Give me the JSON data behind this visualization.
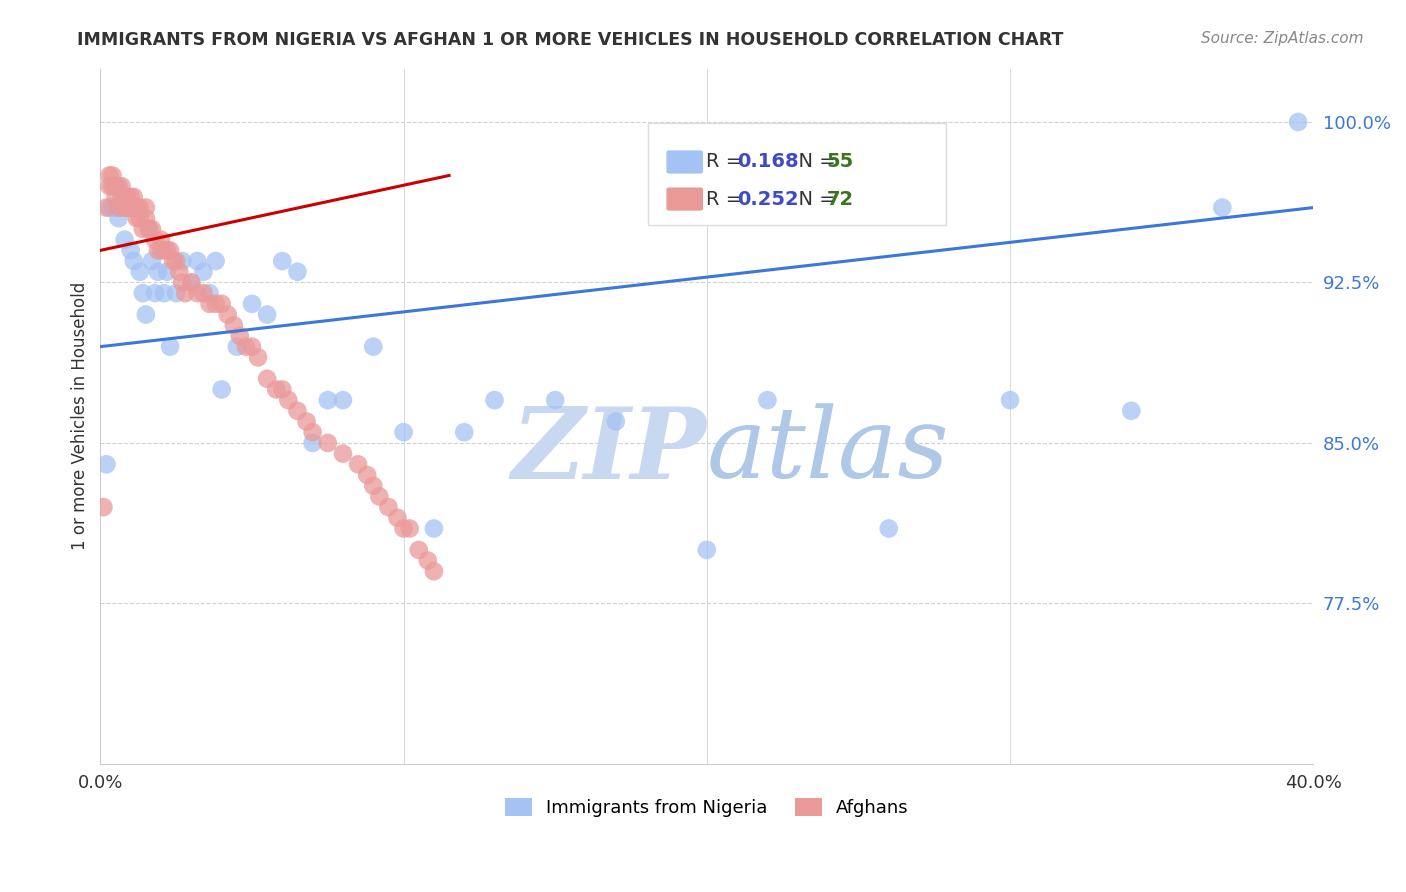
{
  "title": "IMMIGRANTS FROM NIGERIA VS AFGHAN 1 OR MORE VEHICLES IN HOUSEHOLD CORRELATION CHART",
  "source": "Source: ZipAtlas.com",
  "ylabel": "1 or more Vehicles in Household",
  "xmin": 0.0,
  "xmax": 0.4,
  "ymin": 0.7,
  "ymax": 1.025,
  "nigeria_R": 0.168,
  "nigeria_N": 55,
  "afghan_R": 0.252,
  "afghan_N": 72,
  "nigeria_color": "#a4c2f4",
  "afghan_color": "#ea9999",
  "nigeria_line_color": "#3c78d8",
  "afghan_line_color": "#cc0000",
  "grid_color": "#cccccc",
  "title_color": "#333333",
  "source_color": "#888888",
  "legend_r_color": "#3c4cc8",
  "legend_n_color": "#38761d",
  "nigeria_x": [
    0.002,
    0.003,
    0.004,
    0.005,
    0.005,
    0.006,
    0.007,
    0.008,
    0.008,
    0.009,
    0.01,
    0.01,
    0.011,
    0.012,
    0.013,
    0.014,
    0.015,
    0.016,
    0.017,
    0.018,
    0.019,
    0.02,
    0.021,
    0.022,
    0.023,
    0.025,
    0.027,
    0.03,
    0.032,
    0.034,
    0.036,
    0.038,
    0.04,
    0.045,
    0.05,
    0.055,
    0.06,
    0.065,
    0.07,
    0.075,
    0.08,
    0.09,
    0.1,
    0.11,
    0.12,
    0.13,
    0.15,
    0.17,
    0.2,
    0.22,
    0.26,
    0.3,
    0.34,
    0.37,
    0.395
  ],
  "nigeria_y": [
    0.84,
    0.96,
    0.96,
    0.96,
    0.97,
    0.955,
    0.96,
    0.96,
    0.945,
    0.96,
    0.96,
    0.94,
    0.935,
    0.96,
    0.93,
    0.92,
    0.91,
    0.95,
    0.935,
    0.92,
    0.93,
    0.94,
    0.92,
    0.93,
    0.895,
    0.92,
    0.935,
    0.925,
    0.935,
    0.93,
    0.92,
    0.935,
    0.875,
    0.895,
    0.915,
    0.91,
    0.935,
    0.93,
    0.85,
    0.87,
    0.87,
    0.895,
    0.855,
    0.81,
    0.855,
    0.87,
    0.87,
    0.86,
    0.8,
    0.87,
    0.81,
    0.87,
    0.865,
    0.96,
    1.0
  ],
  "afghan_x": [
    0.001,
    0.002,
    0.003,
    0.003,
    0.004,
    0.004,
    0.005,
    0.005,
    0.006,
    0.006,
    0.007,
    0.007,
    0.008,
    0.008,
    0.009,
    0.009,
    0.01,
    0.01,
    0.011,
    0.011,
    0.012,
    0.012,
    0.013,
    0.013,
    0.014,
    0.015,
    0.015,
    0.016,
    0.017,
    0.018,
    0.019,
    0.02,
    0.021,
    0.022,
    0.023,
    0.024,
    0.025,
    0.026,
    0.027,
    0.028,
    0.03,
    0.032,
    0.034,
    0.036,
    0.038,
    0.04,
    0.042,
    0.044,
    0.046,
    0.048,
    0.05,
    0.052,
    0.055,
    0.058,
    0.06,
    0.062,
    0.065,
    0.068,
    0.07,
    0.075,
    0.08,
    0.085,
    0.088,
    0.09,
    0.092,
    0.095,
    0.098,
    0.1,
    0.102,
    0.105,
    0.108,
    0.11
  ],
  "afghan_y": [
    0.82,
    0.96,
    0.97,
    0.975,
    0.97,
    0.975,
    0.97,
    0.965,
    0.97,
    0.96,
    0.965,
    0.97,
    0.965,
    0.96,
    0.96,
    0.965,
    0.965,
    0.96,
    0.96,
    0.965,
    0.96,
    0.955,
    0.955,
    0.96,
    0.95,
    0.955,
    0.96,
    0.95,
    0.95,
    0.945,
    0.94,
    0.945,
    0.94,
    0.94,
    0.94,
    0.935,
    0.935,
    0.93,
    0.925,
    0.92,
    0.925,
    0.92,
    0.92,
    0.915,
    0.915,
    0.915,
    0.91,
    0.905,
    0.9,
    0.895,
    0.895,
    0.89,
    0.88,
    0.875,
    0.875,
    0.87,
    0.865,
    0.86,
    0.855,
    0.85,
    0.845,
    0.84,
    0.835,
    0.83,
    0.825,
    0.82,
    0.815,
    0.81,
    0.81,
    0.8,
    0.795,
    0.79
  ],
  "watermark_zip": "ZIP",
  "watermark_atlas": "atlas",
  "watermark_color_zip": "#d0e0f8",
  "watermark_color_atlas": "#b8d0f0",
  "yticks": [
    0.775,
    0.85,
    0.925,
    1.0
  ],
  "ytick_labels": [
    "77.5%",
    "85.0%",
    "92.5%",
    "100.0%"
  ],
  "xticks": [
    0.0,
    0.1,
    0.2,
    0.3,
    0.4
  ],
  "xtick_labels": [
    "0.0%",
    "",
    "",
    "",
    "40.0%"
  ],
  "nigeria_trendline_x": [
    0.0,
    0.4
  ],
  "nigeria_trendline_y": [
    0.895,
    0.96
  ],
  "afghan_trendline_x": [
    0.0,
    0.115
  ],
  "afghan_trendline_y": [
    0.94,
    0.975
  ]
}
